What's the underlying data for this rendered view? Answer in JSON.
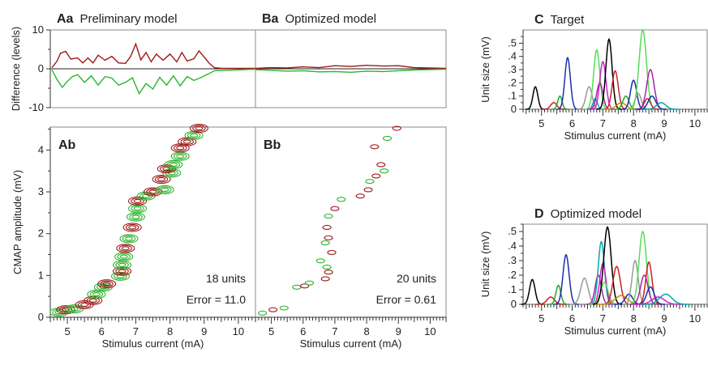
{
  "colors": {
    "red": "#a01818",
    "green": "#2bb52b",
    "units": "#8b008b",
    "frame": "#888888"
  },
  "chart_data": [
    {
      "id": "Aa",
      "type": "line",
      "panel_letter": "Aa",
      "title": "Preliminary model",
      "ylabel": "Difference (levels)",
      "ylim": [
        -10,
        10
      ],
      "yticks": [
        -10,
        0,
        10
      ],
      "xlim": [
        4.5,
        10.5
      ],
      "series": [
        {
          "color": "red",
          "x": [
            4.55,
            4.7,
            4.8,
            4.95,
            5.1,
            5.3,
            5.45,
            5.6,
            5.75,
            5.9,
            6.1,
            6.3,
            6.5,
            6.7,
            6.85,
            7.0,
            7.15,
            7.3,
            7.45,
            7.6,
            7.8,
            8.0,
            8.2,
            8.35,
            8.5,
            8.7,
            8.85,
            9.0,
            9.15,
            9.3,
            9.5,
            10.5
          ],
          "y": [
            0.3,
            2,
            4,
            4.5,
            2.5,
            2.8,
            1.5,
            2.8,
            1.5,
            3.5,
            2.2,
            3.2,
            1.5,
            1.4,
            3.2,
            6.4,
            2.3,
            4.2,
            1.8,
            3.8,
            2.2,
            3.8,
            1.8,
            4.2,
            2.0,
            2.6,
            4.6,
            3.0,
            1.4,
            0.3,
            0.1,
            0.1
          ]
        },
        {
          "color": "green",
          "x": [
            4.55,
            4.7,
            4.85,
            5.0,
            5.15,
            5.3,
            5.5,
            5.7,
            5.9,
            6.1,
            6.3,
            6.5,
            6.7,
            6.9,
            7.1,
            7.3,
            7.5,
            7.7,
            7.9,
            8.1,
            8.3,
            8.5,
            8.7,
            8.9,
            9.1,
            9.3,
            10.5
          ],
          "y": [
            -0.3,
            -2.8,
            -4.8,
            -3.2,
            -2.0,
            -1.5,
            -3.5,
            -1.8,
            -4.2,
            -2.0,
            -2.4,
            -4.2,
            -3.5,
            -2.3,
            -6.4,
            -3.8,
            -5.2,
            -2.2,
            -4.2,
            -1.8,
            -4.4,
            -2.0,
            -3.0,
            -2.3,
            -1.4,
            -0.5,
            -0.1
          ]
        }
      ]
    },
    {
      "id": "Ba",
      "type": "line",
      "panel_letter": "Ba",
      "title": "Optimized model",
      "ylim": [
        -10,
        10
      ],
      "xlim": [
        4.5,
        10.5
      ],
      "series": [
        {
          "color": "red",
          "x": [
            4.5,
            5.0,
            5.5,
            6.0,
            6.5,
            7.0,
            7.5,
            8.0,
            8.5,
            9.0,
            9.5,
            10.5
          ],
          "y": [
            0.1,
            0.3,
            0.2,
            0.5,
            0.3,
            0.8,
            0.6,
            0.9,
            0.7,
            0.8,
            0.3,
            0.1
          ]
        },
        {
          "color": "green",
          "x": [
            4.5,
            5.0,
            5.5,
            6.0,
            6.5,
            7.0,
            7.5,
            8.0,
            8.5,
            9.0,
            9.5,
            10.5
          ],
          "y": [
            -0.2,
            -0.4,
            -0.6,
            -0.5,
            -0.8,
            -0.7,
            -0.9,
            -0.6,
            -0.7,
            -0.5,
            -0.3,
            -0.1
          ]
        }
      ]
    },
    {
      "id": "Ab",
      "type": "scatter",
      "panel_letter": "Ab",
      "ylabel": "CMAP amplitude (mV)",
      "xlabel": "Stimulus current (mA)",
      "xlim": [
        4.5,
        10.5
      ],
      "ylim": [
        0,
        4.55
      ],
      "xticks": [
        5,
        6,
        7,
        8,
        9,
        10
      ],
      "yticks": [
        0,
        1,
        2,
        3,
        4
      ],
      "annotations": [
        "18 units",
        "Error = 11.0"
      ],
      "blobs": [
        {
          "x": 4.75,
          "y": 0.12,
          "c": "green"
        },
        {
          "x": 4.95,
          "y": 0.18,
          "c": "red"
        },
        {
          "x": 5.2,
          "y": 0.2,
          "c": "green"
        },
        {
          "x": 5.5,
          "y": 0.3,
          "c": "red"
        },
        {
          "x": 5.75,
          "y": 0.4,
          "c": "red"
        },
        {
          "x": 5.85,
          "y": 0.55,
          "c": "green"
        },
        {
          "x": 6.05,
          "y": 0.72,
          "c": "green"
        },
        {
          "x": 6.15,
          "y": 0.8,
          "c": "red"
        },
        {
          "x": 6.55,
          "y": 0.98,
          "c": "green"
        },
        {
          "x": 6.6,
          "y": 1.1,
          "c": "red"
        },
        {
          "x": 6.6,
          "y": 1.25,
          "c": "green"
        },
        {
          "x": 6.65,
          "y": 1.45,
          "c": "green"
        },
        {
          "x": 6.7,
          "y": 1.65,
          "c": "red"
        },
        {
          "x": 6.8,
          "y": 1.88,
          "c": "green"
        },
        {
          "x": 6.9,
          "y": 2.15,
          "c": "red"
        },
        {
          "x": 7.0,
          "y": 2.4,
          "c": "green"
        },
        {
          "x": 7.05,
          "y": 2.6,
          "c": "green"
        },
        {
          "x": 7.05,
          "y": 2.78,
          "c": "red"
        },
        {
          "x": 7.3,
          "y": 2.9,
          "c": "green"
        },
        {
          "x": 7.5,
          "y": 3.0,
          "c": "red"
        },
        {
          "x": 7.85,
          "y": 3.05,
          "c": "green"
        },
        {
          "x": 7.75,
          "y": 3.3,
          "c": "red"
        },
        {
          "x": 8.05,
          "y": 3.45,
          "c": "green"
        },
        {
          "x": 7.9,
          "y": 3.55,
          "c": "red"
        },
        {
          "x": 8.1,
          "y": 3.65,
          "c": "green"
        },
        {
          "x": 8.3,
          "y": 3.85,
          "c": "green"
        },
        {
          "x": 8.3,
          "y": 4.05,
          "c": "red"
        },
        {
          "x": 8.5,
          "y": 4.2,
          "c": "red"
        },
        {
          "x": 8.7,
          "y": 4.35,
          "c": "green"
        },
        {
          "x": 8.85,
          "y": 4.52,
          "c": "red"
        }
      ]
    },
    {
      "id": "Bb",
      "type": "scatter",
      "panel_letter": "Bb",
      "xlabel": "Stimulus current (mA)",
      "xlim": [
        4.5,
        10.5
      ],
      "ylim": [
        0,
        4.55
      ],
      "xticks": [
        5,
        6,
        7,
        8,
        9,
        10
      ],
      "annotations": [
        "20 units",
        "Error = 0.61"
      ],
      "blobs": [
        {
          "x": 4.72,
          "y": 0.1,
          "c": "green"
        },
        {
          "x": 5.05,
          "y": 0.18,
          "c": "red"
        },
        {
          "x": 5.4,
          "y": 0.22,
          "c": "green"
        },
        {
          "x": 5.8,
          "y": 0.72,
          "c": "green"
        },
        {
          "x": 6.05,
          "y": 0.75,
          "c": "red"
        },
        {
          "x": 6.2,
          "y": 0.82,
          "c": "green"
        },
        {
          "x": 6.7,
          "y": 0.92,
          "c": "red"
        },
        {
          "x": 6.8,
          "y": 1.08,
          "c": "red"
        },
        {
          "x": 6.75,
          "y": 1.2,
          "c": "green"
        },
        {
          "x": 6.55,
          "y": 1.35,
          "c": "green"
        },
        {
          "x": 6.9,
          "y": 1.55,
          "c": "red"
        },
        {
          "x": 6.7,
          "y": 1.78,
          "c": "green"
        },
        {
          "x": 6.8,
          "y": 1.9,
          "c": "red"
        },
        {
          "x": 6.75,
          "y": 2.15,
          "c": "red"
        },
        {
          "x": 6.8,
          "y": 2.42,
          "c": "green"
        },
        {
          "x": 7.0,
          "y": 2.6,
          "c": "red"
        },
        {
          "x": 7.2,
          "y": 2.82,
          "c": "green"
        },
        {
          "x": 7.8,
          "y": 2.9,
          "c": "red"
        },
        {
          "x": 8.05,
          "y": 3.05,
          "c": "red"
        },
        {
          "x": 8.1,
          "y": 3.25,
          "c": "green"
        },
        {
          "x": 8.3,
          "y": 3.38,
          "c": "red"
        },
        {
          "x": 8.55,
          "y": 3.5,
          "c": "green"
        },
        {
          "x": 8.45,
          "y": 3.65,
          "c": "red"
        },
        {
          "x": 8.25,
          "y": 4.08,
          "c": "red"
        },
        {
          "x": 8.65,
          "y": 4.28,
          "c": "green"
        },
        {
          "x": 8.95,
          "y": 4.52,
          "c": "red"
        }
      ]
    },
    {
      "id": "C",
      "type": "area",
      "panel_letter": "C",
      "title": "Target",
      "ylabel": "Unit size (mV)",
      "xlabel": "Stimulus current (mA)",
      "xlim": [
        4.4,
        10.4
      ],
      "ylim": [
        0,
        0.6
      ],
      "yticks": [
        0,
        0.1,
        0.2,
        0.3,
        0.4,
        0.5
      ],
      "ytick_labels": [
        "0",
        ".1",
        ".2",
        ".3",
        ".4",
        ".5"
      ],
      "xticks": [
        5,
        6,
        7,
        8,
        9,
        10
      ],
      "units": [
        {
          "mu": 4.8,
          "sd": 0.08,
          "a": 0.17,
          "col": "#000000"
        },
        {
          "mu": 5.4,
          "sd": 0.1,
          "a": 0.05,
          "col": "#cc2222"
        },
        {
          "mu": 5.6,
          "sd": 0.07,
          "a": 0.1,
          "col": "#22aa22"
        },
        {
          "mu": 5.85,
          "sd": 0.09,
          "a": 0.39,
          "col": "#1a2faa"
        },
        {
          "mu": 6.55,
          "sd": 0.1,
          "a": 0.17,
          "col": "#999999"
        },
        {
          "mu": 6.75,
          "sd": 0.07,
          "a": 0.08,
          "col": "#00aaaa"
        },
        {
          "mu": 6.8,
          "sd": 0.1,
          "a": 0.45,
          "col": "#55dd55"
        },
        {
          "mu": 6.9,
          "sd": 0.1,
          "a": 0.2,
          "col": "#aa22aa"
        },
        {
          "mu": 7.0,
          "sd": 0.1,
          "a": 0.36,
          "col": "#cc22cc"
        },
        {
          "mu": 7.2,
          "sd": 0.1,
          "a": 0.53,
          "col": "#000000"
        },
        {
          "mu": 7.4,
          "sd": 0.1,
          "a": 0.29,
          "col": "#cc2222"
        },
        {
          "mu": 7.6,
          "sd": 0.15,
          "a": 0.05,
          "col": "#cc8800"
        },
        {
          "mu": 7.75,
          "sd": 0.1,
          "a": 0.1,
          "col": "#22aa22"
        },
        {
          "mu": 8.0,
          "sd": 0.1,
          "a": 0.22,
          "col": "#1a2faa"
        },
        {
          "mu": 8.15,
          "sd": 0.1,
          "a": 0.12,
          "col": "#999999"
        },
        {
          "mu": 8.3,
          "sd": 0.12,
          "a": 0.6,
          "col": "#55dd55"
        },
        {
          "mu": 8.45,
          "sd": 0.1,
          "a": 0.08,
          "col": "#cc2222"
        },
        {
          "mu": 8.55,
          "sd": 0.12,
          "a": 0.3,
          "col": "#aa22aa"
        },
        {
          "mu": 8.6,
          "sd": 0.12,
          "a": 0.1,
          "col": "#1a2faa"
        },
        {
          "mu": 8.9,
          "sd": 0.15,
          "a": 0.05,
          "col": "#00aaaa"
        }
      ]
    },
    {
      "id": "D",
      "type": "area",
      "panel_letter": "D",
      "title": "Optimized  model",
      "ylabel": "Unit size (mV)",
      "xlabel": "Stimulus current (mA)",
      "xlim": [
        4.4,
        10.4
      ],
      "ylim": [
        0,
        0.55
      ],
      "yticks": [
        0,
        0.1,
        0.2,
        0.3,
        0.4,
        0.5
      ],
      "ytick_labels": [
        "0",
        ".1",
        ".2",
        ".3",
        ".4",
        ".5"
      ],
      "xticks": [
        5,
        6,
        7,
        8,
        9,
        10
      ],
      "units": [
        {
          "mu": 4.7,
          "sd": 0.09,
          "a": 0.17,
          "col": "#000000"
        },
        {
          "mu": 5.3,
          "sd": 0.12,
          "a": 0.05,
          "col": "#cc2222"
        },
        {
          "mu": 5.55,
          "sd": 0.08,
          "a": 0.13,
          "col": "#22aa22"
        },
        {
          "mu": 5.8,
          "sd": 0.1,
          "a": 0.34,
          "col": "#1a2faa"
        },
        {
          "mu": 6.4,
          "sd": 0.12,
          "a": 0.18,
          "col": "#999999"
        },
        {
          "mu": 6.85,
          "sd": 0.1,
          "a": 0.2,
          "col": "#aa22aa"
        },
        {
          "mu": 6.95,
          "sd": 0.1,
          "a": 0.43,
          "col": "#00aaaa"
        },
        {
          "mu": 7.0,
          "sd": 0.1,
          "a": 0.28,
          "col": "#cc22cc"
        },
        {
          "mu": 7.05,
          "sd": 0.12,
          "a": 0.15,
          "col": "#55dd55"
        },
        {
          "mu": 7.15,
          "sd": 0.12,
          "a": 0.53,
          "col": "#000000"
        },
        {
          "mu": 7.45,
          "sd": 0.12,
          "a": 0.26,
          "col": "#cc2222"
        },
        {
          "mu": 7.6,
          "sd": 0.2,
          "a": 0.06,
          "col": "#cc8800"
        },
        {
          "mu": 7.85,
          "sd": 0.12,
          "a": 0.07,
          "col": "#1a2faa"
        },
        {
          "mu": 8.05,
          "sd": 0.1,
          "a": 0.3,
          "col": "#999999"
        },
        {
          "mu": 8.3,
          "sd": 0.12,
          "a": 0.5,
          "col": "#55dd55"
        },
        {
          "mu": 8.35,
          "sd": 0.12,
          "a": 0.2,
          "col": "#aa22aa"
        },
        {
          "mu": 8.5,
          "sd": 0.1,
          "a": 0.29,
          "col": "#cc2222"
        },
        {
          "mu": 8.55,
          "sd": 0.12,
          "a": 0.12,
          "col": "#1a2faa"
        },
        {
          "mu": 8.8,
          "sd": 0.2,
          "a": 0.05,
          "col": "#cc22cc"
        },
        {
          "mu": 9.05,
          "sd": 0.2,
          "a": 0.07,
          "col": "#00aaaa"
        }
      ]
    }
  ]
}
